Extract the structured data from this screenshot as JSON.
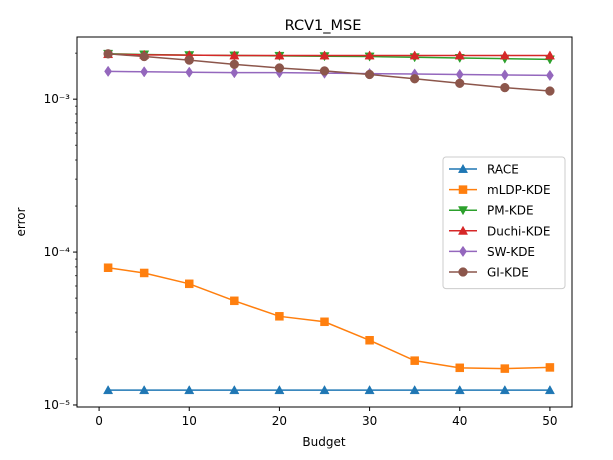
{
  "chart_data": {
    "type": "line",
    "title": "RCV1_MSE",
    "xlabel": "Budget",
    "ylabel": "error",
    "y_scale": "log",
    "xlim": [
      -2.45,
      52.45
    ],
    "ylim": [
      9.7e-06,
      0.00255
    ],
    "x_ticks": [
      0,
      10,
      20,
      30,
      40,
      50
    ],
    "x_tick_labels": [
      "0",
      "10",
      "20",
      "30",
      "40",
      "50"
    ],
    "y_ticks": [
      1e-05,
      0.0001,
      0.001
    ],
    "y_tick_labels": [
      "10⁻⁵",
      "10⁻⁴",
      "10⁻³"
    ],
    "grid": false,
    "legend_position": "center-right",
    "x": [
      1,
      5,
      10,
      15,
      20,
      25,
      30,
      35,
      40,
      45,
      50
    ],
    "series": [
      {
        "name": "RACE",
        "color": "#1f77b4",
        "marker": "triangle-up",
        "values": [
          1.25e-05,
          1.25e-05,
          1.25e-05,
          1.25e-05,
          1.25e-05,
          1.25e-05,
          1.25e-05,
          1.25e-05,
          1.25e-05,
          1.25e-05,
          1.25e-05
        ]
      },
      {
        "name": "mLDP-KDE",
        "color": "#ff7f0e",
        "marker": "square",
        "values": [
          7.9e-05,
          7.3e-05,
          6.2e-05,
          4.8e-05,
          3.8e-05,
          3.5e-05,
          2.65e-05,
          1.95e-05,
          1.75e-05,
          1.73e-05,
          1.76e-05
        ]
      },
      {
        "name": "PM-KDE",
        "color": "#2ca02c",
        "marker": "triangle-down",
        "values": [
          0.00198,
          0.00196,
          0.00194,
          0.00193,
          0.00192,
          0.00191,
          0.0019,
          0.00188,
          0.00186,
          0.00184,
          0.00182
        ]
      },
      {
        "name": "Duchi-KDE",
        "color": "#d62728",
        "marker": "triangle-up",
        "values": [
          0.00197,
          0.00195,
          0.00194,
          0.00193,
          0.00193,
          0.00193,
          0.00193,
          0.00193,
          0.00193,
          0.00193,
          0.00193
        ]
      },
      {
        "name": "SW-KDE",
        "color": "#9467bd",
        "marker": "diamond",
        "values": [
          0.00152,
          0.00151,
          0.0015,
          0.00149,
          0.00149,
          0.00148,
          0.00147,
          0.00146,
          0.00145,
          0.00144,
          0.00143
        ]
      },
      {
        "name": "GI-KDE",
        "color": "#8c564b",
        "marker": "circle",
        "values": [
          0.00198,
          0.0019,
          0.0018,
          0.00169,
          0.0016,
          0.00153,
          0.00145,
          0.00136,
          0.00127,
          0.00119,
          0.00113
        ]
      }
    ]
  }
}
